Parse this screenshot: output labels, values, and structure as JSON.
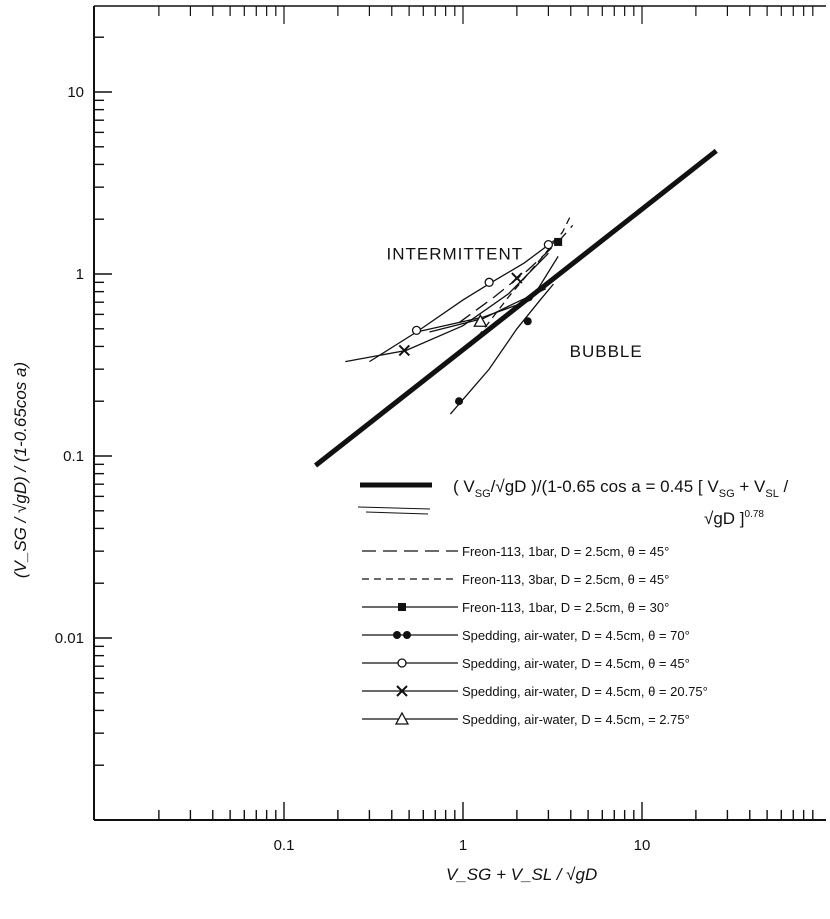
{
  "chart_data": {
    "type": "line",
    "title": "",
    "xlabel": "V_SG + V_SL / √gD",
    "ylabel": "(V_SG / √gD) / (1-0.65cos a)",
    "xscale": "log",
    "yscale": "log",
    "xlim": [
      0.02,
      100
    ],
    "ylim": [
      0.001,
      30
    ],
    "grid": false,
    "x_ticks": [
      {
        "value": 0.1,
        "label": "0.1"
      },
      {
        "value": 1,
        "label": "1"
      },
      {
        "value": 10,
        "label": "10"
      }
    ],
    "y_ticks": [
      {
        "value": 0.01,
        "label": "0.01"
      },
      {
        "value": 0.1,
        "label": "0.1"
      },
      {
        "value": 1,
        "label": "1"
      },
      {
        "value": 10,
        "label": "10"
      }
    ],
    "region_labels": [
      {
        "text": "INTERMITTENT",
        "x": 0.55,
        "y": 1.2
      },
      {
        "text": "BUBBLE",
        "x": 5.8,
        "y": 0.35
      }
    ],
    "correlation": {
      "name": "(V_SG/√gD)/(1-0.65cos a = 0.45 [V_SG + V_SL / √gD]^0.78",
      "eq_line1": "( V",
      "eq_sub1": "SG",
      "eq_mid": "/√gD )/(1-0.65 cos a = 0.45 [ V",
      "eq_sub2": "SG",
      "eq_plus": " + V",
      "eq_sub3": "SL",
      "eq_slash": " /",
      "eq_line2": "√gD ]",
      "eq_exp": "0.78",
      "points": [
        [
          0.15,
          0.0887
        ],
        [
          26,
          4.75
        ]
      ]
    },
    "series": [
      {
        "name": "Freon-113, 1bar,  D = 2.5cm,  θ = 45°",
        "style": "longdash",
        "marker": "none",
        "values": [
          [
            0.95,
            0.54
          ],
          [
            1.5,
            0.75
          ],
          [
            2.3,
            1.05
          ],
          [
            3.4,
            1.5
          ],
          [
            4.1,
            1.85
          ]
        ]
      },
      {
        "name": "Freon-113, 3bar,  D = 2.5cm,  θ = 45°",
        "style": "dash",
        "marker": "none",
        "values": [
          [
            1.1,
            0.4
          ],
          [
            1.8,
            0.75
          ],
          [
            2.7,
            1.2
          ],
          [
            3.6,
            1.7
          ],
          [
            4.0,
            2.1
          ]
        ]
      },
      {
        "name": "Freon-113, 1bar,  D = 2.5cm,  θ = 30°",
        "style": "solid",
        "marker": "square",
        "values": [
          [
            0.55,
            0.48
          ],
          [
            1.3,
            0.58
          ],
          [
            2.4,
            0.72
          ],
          [
            3.4,
            1.25
          ]
        ],
        "marker_at": [
          [
            3.4,
            1.5
          ]
        ]
      },
      {
        "name": "Spedding,  air-water,  D = 4.5cm,  θ = 70°",
        "style": "solid",
        "marker": "filled-circle",
        "values": [
          [
            0.85,
            0.17
          ],
          [
            1.4,
            0.3
          ],
          [
            2.0,
            0.5
          ],
          [
            2.7,
            0.72
          ],
          [
            3.2,
            0.88
          ]
        ],
        "marker_at": [
          [
            0.95,
            0.2
          ],
          [
            2.3,
            0.55
          ]
        ]
      },
      {
        "name": "Spedding,  air-water,  D = 4.5cm,  θ = 45°",
        "style": "solid",
        "marker": "open-circle",
        "values": [
          [
            0.3,
            0.33
          ],
          [
            0.55,
            0.48
          ],
          [
            1.0,
            0.72
          ],
          [
            1.5,
            0.92
          ],
          [
            2.2,
            1.15
          ],
          [
            3.3,
            1.55
          ]
        ],
        "marker_at": [
          [
            0.55,
            0.49
          ],
          [
            1.4,
            0.9
          ],
          [
            3.0,
            1.45
          ]
        ]
      },
      {
        "name": "Spedding,  air-water,  D = 4.5cm,  θ = 20.75°",
        "style": "solid",
        "marker": "cross",
        "values": [
          [
            0.22,
            0.33
          ],
          [
            0.48,
            0.38
          ],
          [
            1.0,
            0.52
          ],
          [
            1.8,
            0.78
          ],
          [
            3.0,
            1.3
          ]
        ],
        "marker_at": [
          [
            0.47,
            0.38
          ],
          [
            2.0,
            0.95
          ]
        ]
      },
      {
        "name": "Spedding,  air-water,  D = 4.5cm,      = 2.75°",
        "style": "solid",
        "marker": "open-triangle",
        "values": [
          [
            0.65,
            0.48
          ],
          [
            1.3,
            0.57
          ],
          [
            2.0,
            0.7
          ],
          [
            2.9,
            0.83
          ]
        ],
        "marker_at": [
          [
            1.25,
            0.55
          ]
        ]
      }
    ]
  }
}
